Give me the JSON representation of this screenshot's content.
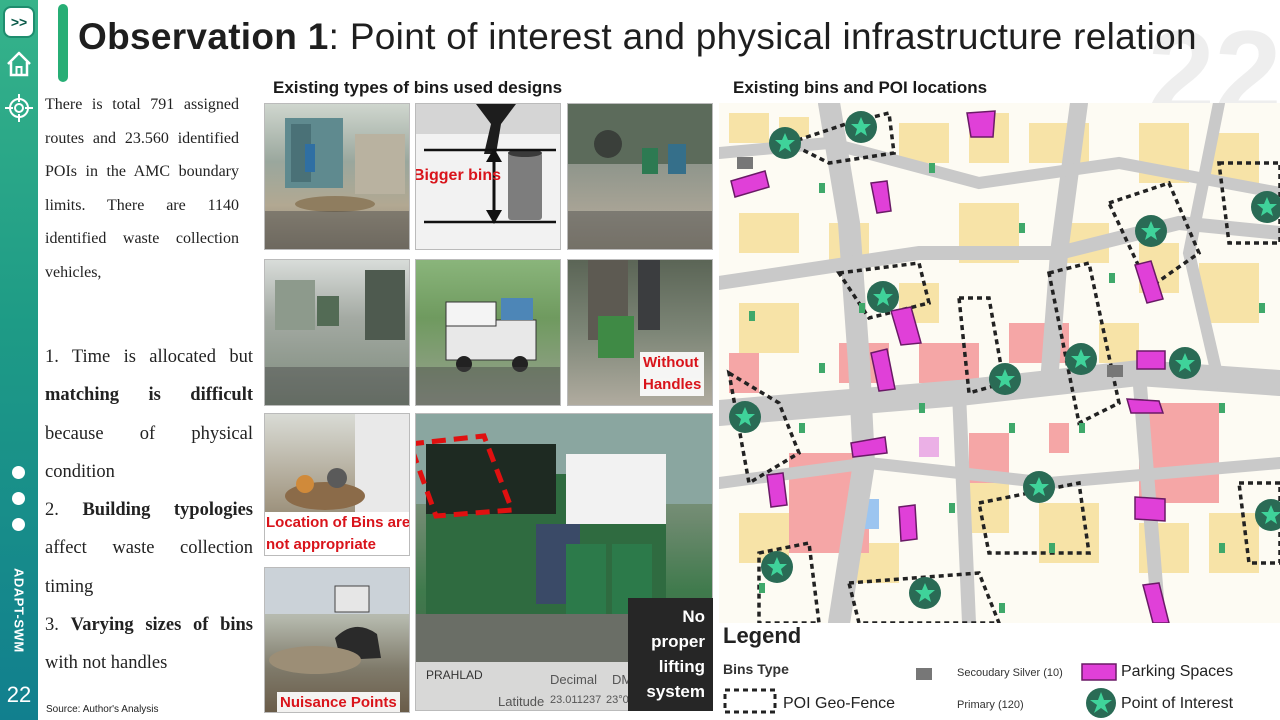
{
  "sidebar": {
    "next_label": ">>",
    "brand": "ADAPT-SWM",
    "page_number": "22"
  },
  "header": {
    "title_bold": "Observation 1",
    "title_rest": ": Point of interest and physical infrastructure relation",
    "watermark": "22"
  },
  "text": {
    "intro": "There is total 791 assigned routes and 23.560 identified POIs in the AMC boundary limits. There are 1140 identified waste collection vehicles,",
    "point1_a": "1. Time is allocated but ",
    "point1_b": "matching is difficult",
    "point1_c": " because of physical condition",
    "point2_a": "2. ",
    "point2_b": "Building typologies",
    "point2_c": " affect waste collection timing",
    "point3_a": "3. ",
    "point3_b": "Varying sizes of bins",
    "point3_c": " with not handles",
    "source": "Source: Author's Analysis"
  },
  "photos": {
    "section_title": "Existing types of bins used designs",
    "label_bigger": "Bigger bins",
    "label_without_1": "Without",
    "label_without_2": "Handles",
    "label_location_1": "Location of Bins are",
    "label_location_2": "not appropriate",
    "label_nuisance": "Nuisance Points",
    "label_lifting_1": "No",
    "label_lifting_2": "proper",
    "label_lifting_3": "lifting",
    "label_lifting_4": "system",
    "geo_decimal": "Decimal",
    "geo_dms": "DMS",
    "geo_latitude": "Latitude",
    "geo_lat_value": "23.011237",
    "geo_lat_dms": "23°0",
    "geo_place": "PRAHLAD"
  },
  "map": {
    "section_title": "Existing bins and POI locations"
  },
  "legend": {
    "title": "Legend",
    "bins_type": "Bins Type",
    "secondary": "Secoudary Silver (10)",
    "primary": "Primary (120)",
    "parking": "Parking Spaces",
    "geofence": "POI Geo-Fence",
    "poi": "Point of Interest"
  },
  "colors": {
    "accent_green": "#27ae75",
    "parking_magenta": "#e040d8",
    "poi_green": "#2fbf8a",
    "label_red": "#d9141b"
  }
}
